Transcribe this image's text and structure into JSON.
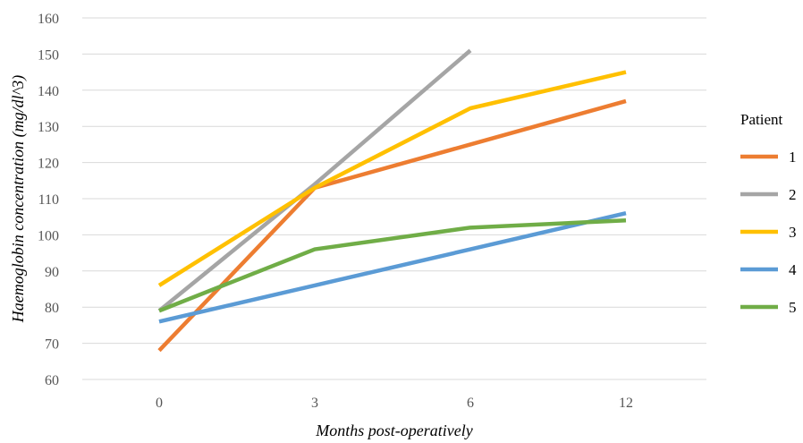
{
  "chart_data": {
    "type": "line",
    "x": [
      "0",
      "3",
      "6",
      "12"
    ],
    "xlabel": "Months post-operatively",
    "ylabel": "Haemoglobin concentration (mg/dl^3)",
    "ylim": [
      60,
      160
    ],
    "yticks": [
      "60",
      "70",
      "80",
      "90",
      "100",
      "110",
      "120",
      "130",
      "140",
      "150",
      "160"
    ],
    "grid": "horizontal",
    "legend": {
      "title": "Patient",
      "placement": "right"
    },
    "series": [
      {
        "name": "1",
        "color": "#ED7D31",
        "values": [
          68,
          113,
          125,
          137
        ]
      },
      {
        "name": "2",
        "color": "#A5A5A5",
        "values": [
          79,
          114,
          151,
          null
        ]
      },
      {
        "name": "3",
        "color": "#FFC000",
        "values": [
          86,
          113,
          135,
          145
        ]
      },
      {
        "name": "4",
        "color": "#5B9BD5",
        "values": [
          76,
          86,
          96,
          106
        ]
      },
      {
        "name": "5",
        "color": "#70AD47",
        "values": [
          79,
          96,
          102,
          104
        ]
      }
    ]
  }
}
